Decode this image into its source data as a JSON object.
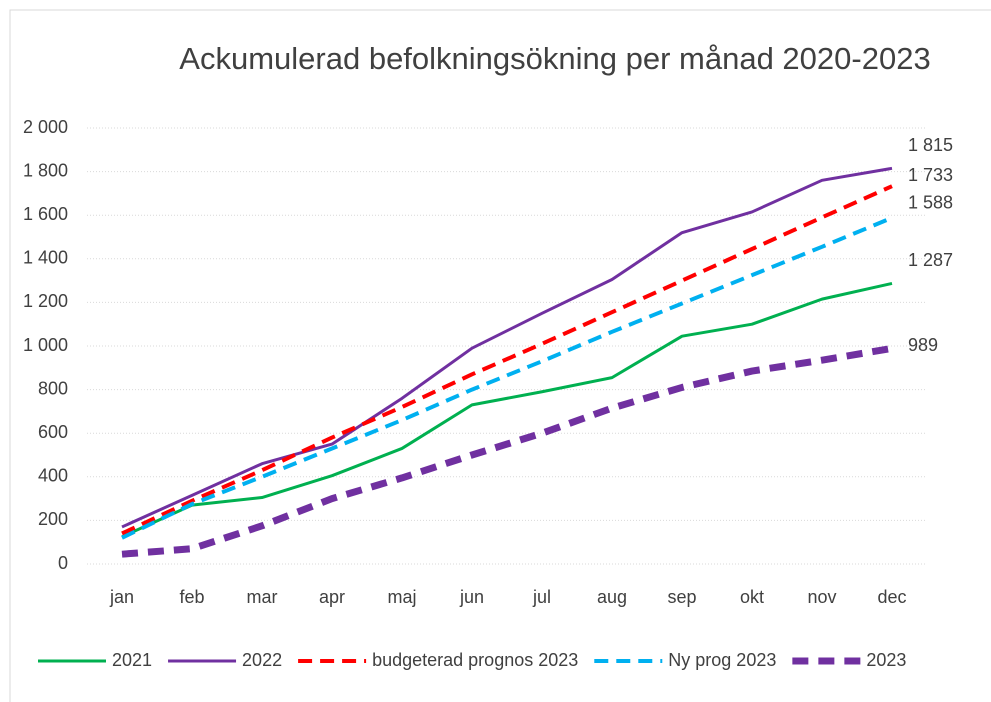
{
  "chart_data": {
    "type": "line",
    "title": "Ackumulerad befolkningsökning per månad 2020-2023",
    "categories": [
      "jan",
      "feb",
      "mar",
      "apr",
      "maj",
      "jun",
      "jul",
      "aug",
      "sep",
      "okt",
      "nov",
      "dec"
    ],
    "ylim": [
      0,
      2000
    ],
    "yticks": [
      {
        "value": 0,
        "label": "0"
      },
      {
        "value": 200,
        "label": "200"
      },
      {
        "value": 400,
        "label": "400"
      },
      {
        "value": 600,
        "label": "600"
      },
      {
        "value": 800,
        "label": "800"
      },
      {
        "value": 1000,
        "label": "1 000"
      },
      {
        "value": 1200,
        "label": "1 200"
      },
      {
        "value": 1400,
        "label": "1 400"
      },
      {
        "value": 1600,
        "label": "1 600"
      },
      {
        "value": 1800,
        "label": "1 800"
      },
      {
        "value": 2000,
        "label": "2 000"
      }
    ],
    "grid": true,
    "legend": "bottom",
    "series": [
      {
        "name": "2021",
        "color": "#00b050",
        "style": "solid",
        "width": 3,
        "values": [
          125,
          270,
          305,
          405,
          530,
          730,
          790,
          855,
          1045,
          1100,
          1215,
          1287
        ],
        "value_labels": [
          null,
          null,
          null,
          null,
          null,
          null,
          null,
          null,
          null,
          null,
          null,
          "1 287"
        ]
      },
      {
        "name": "2022",
        "color": "#7030a0",
        "style": "solid",
        "width": 3,
        "values": [
          170,
          315,
          460,
          550,
          760,
          990,
          1150,
          1305,
          1520,
          1615,
          1760,
          1815
        ],
        "value_labels": [
          null,
          null,
          null,
          null,
          null,
          null,
          null,
          null,
          null,
          null,
          null,
          "1 815"
        ]
      },
      {
        "name": "budgeterad prognos 2023",
        "color": "#ff0000",
        "style": "dashed",
        "width": 4,
        "values": [
          140,
          290,
          430,
          580,
          720,
          870,
          1010,
          1155,
          1300,
          1445,
          1590,
          1733
        ],
        "value_labels": [
          null,
          null,
          null,
          null,
          null,
          null,
          null,
          null,
          null,
          null,
          null,
          "1 733"
        ]
      },
      {
        "name": "Ny prog 2023",
        "color": "#00b0f0",
        "style": "dashed",
        "width": 4,
        "values": [
          120,
          275,
          400,
          530,
          660,
          800,
          930,
          1065,
          1195,
          1325,
          1455,
          1588
        ],
        "value_labels": [
          null,
          null,
          null,
          null,
          null,
          null,
          null,
          null,
          null,
          null,
          null,
          "1 588"
        ]
      },
      {
        "name": "2023",
        "color": "#7030a0",
        "style": "dashed",
        "width": 7,
        "values": [
          45,
          70,
          175,
          300,
          395,
          500,
          600,
          715,
          810,
          885,
          935,
          989
        ],
        "value_labels": [
          null,
          null,
          null,
          null,
          null,
          null,
          null,
          null,
          null,
          null,
          null,
          "989"
        ]
      }
    ]
  }
}
